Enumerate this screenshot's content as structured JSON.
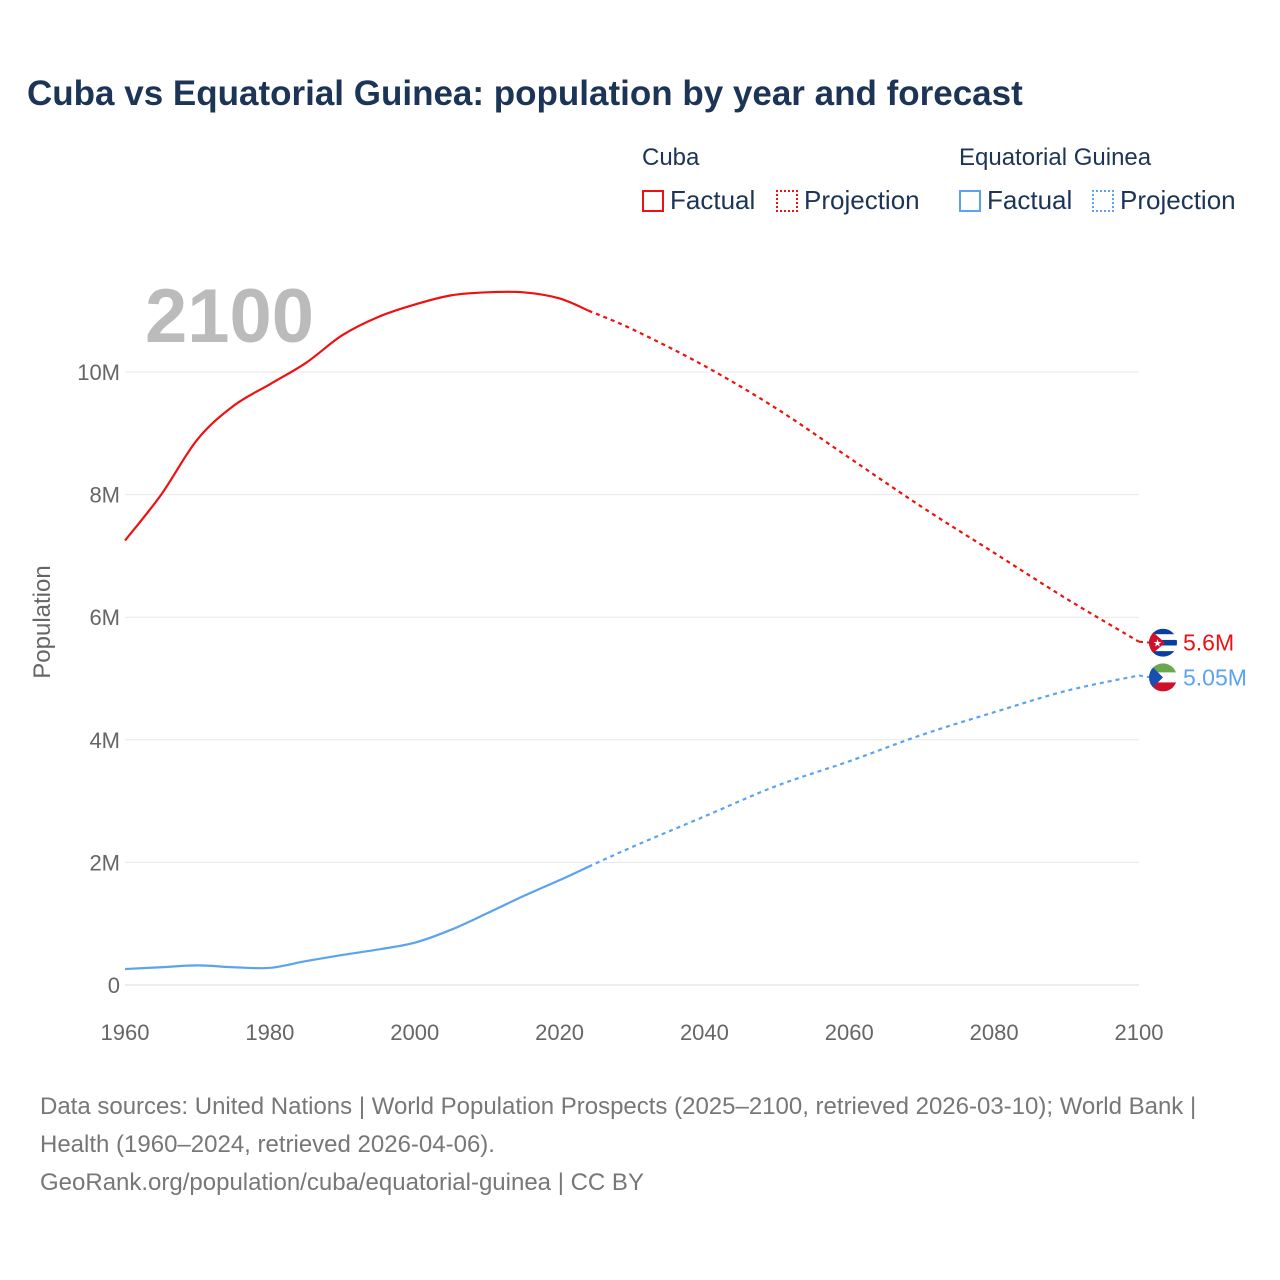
{
  "title": "Cuba vs Equatorial Guinea: population by year and forecast",
  "legend": {
    "groups": [
      {
        "name": "Cuba",
        "factual": "Factual",
        "projection": "Projection",
        "color": "#ee1111"
      },
      {
        "name": "Equatorial Guinea",
        "factual": "Factual",
        "projection": "Projection",
        "color": "#5ba3ee"
      }
    ]
  },
  "year_label": "2100",
  "source": {
    "line1": "Data sources: United Nations | World Population Prospects (2025–2100, retrieved 2026-03-10); World Bank | Health (1960–2024, retrieved 2026-04-06).",
    "line2": "GeoRank.org/population/cuba/equatorial-guinea | CC BY"
  },
  "chart_data": {
    "type": "line",
    "title": "Cuba vs Equatorial Guinea: population by year and forecast",
    "xlabel": "",
    "ylabel": "Population",
    "xlim": [
      1960,
      2100
    ],
    "ylim": [
      0,
      11500000
    ],
    "x_ticks": [
      "1960",
      "1980",
      "2000",
      "2020",
      "2040",
      "2060",
      "2080",
      "2100"
    ],
    "y_ticks": [
      {
        "v": 0,
        "label": "0"
      },
      {
        "v": 2000000,
        "label": "2M"
      },
      {
        "v": 4000000,
        "label": "4M"
      },
      {
        "v": 6000000,
        "label": "6M"
      },
      {
        "v": 8000000,
        "label": "8M"
      },
      {
        "v": 10000000,
        "label": "10M"
      }
    ],
    "grid": true,
    "projection_start": 2024,
    "series": [
      {
        "name": "Cuba",
        "color": "#ee1111",
        "end_label": "5.6M",
        "x": [
          1960,
          1965,
          1970,
          1975,
          1980,
          1985,
          1990,
          1995,
          2000,
          2005,
          2010,
          2015,
          2020,
          2024,
          2030,
          2040,
          2050,
          2060,
          2070,
          2080,
          2090,
          2100
        ],
        "values": [
          7250000,
          8000000,
          8900000,
          9450000,
          9800000,
          10150000,
          10600000,
          10900000,
          11100000,
          11250000,
          11300000,
          11300000,
          11200000,
          11000000,
          10700000,
          10100000,
          9400000,
          8600000,
          7800000,
          7050000,
          6300000,
          5600000
        ]
      },
      {
        "name": "Equatorial Guinea",
        "color": "#5ba3ee",
        "end_label": "5.05M",
        "x": [
          1960,
          1965,
          1970,
          1975,
          1980,
          1985,
          1990,
          1995,
          2000,
          2005,
          2010,
          2015,
          2020,
          2024,
          2030,
          2040,
          2050,
          2060,
          2070,
          2080,
          2090,
          2100
        ],
        "values": [
          260000,
          290000,
          320000,
          290000,
          280000,
          390000,
          490000,
          580000,
          690000,
          900000,
          1170000,
          1450000,
          1710000,
          1930000,
          2250000,
          2750000,
          3250000,
          3650000,
          4080000,
          4450000,
          4800000,
          5050000
        ]
      }
    ]
  }
}
